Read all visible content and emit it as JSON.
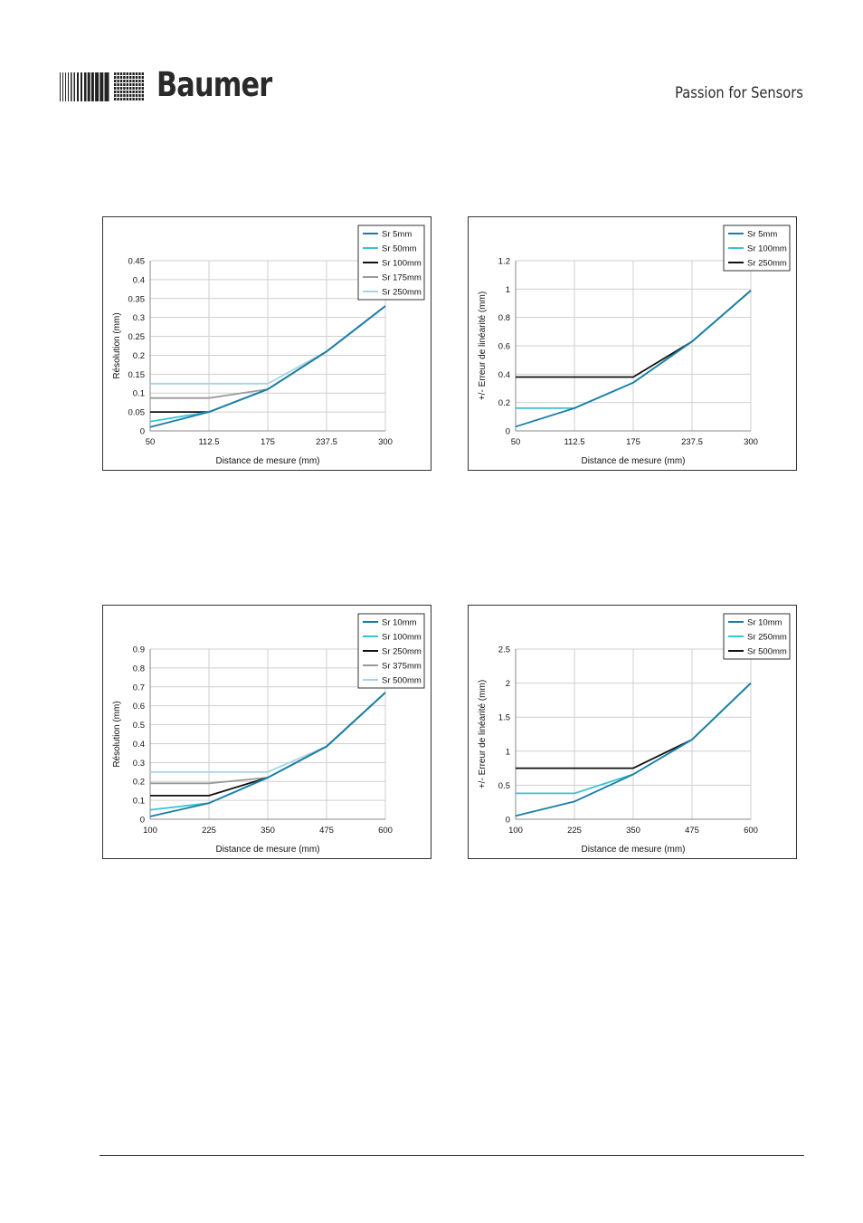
{
  "header": {
    "brand": "Baumer",
    "tagline": "Passion for Sensors"
  },
  "chart_data": [
    {
      "type": "line",
      "xlabel": "Distance de mesure (mm)",
      "ylabel": "Résolution (mm)",
      "x": [
        50,
        112.5,
        175,
        237.5,
        300
      ],
      "x_ticks": [
        "50",
        "112.5",
        "175",
        "237.5",
        "300"
      ],
      "y_ticks": [
        "0",
        "0.05",
        "0.1",
        "0.15",
        "0.2",
        "0.25",
        "0.3",
        "0.35",
        "0.4",
        "0.45"
      ],
      "ylim": [
        0,
        0.45
      ],
      "grid": true,
      "legend": "top-right",
      "series": [
        {
          "name": "Sr 5mm",
          "color": "#1a7fa6",
          "values": [
            0.01,
            0.05,
            0.11,
            0.21,
            0.33
          ]
        },
        {
          "name": "Sr 50mm",
          "color": "#3cc1d4",
          "values": [
            0.025,
            0.05,
            0.11,
            0.21,
            0.33
          ]
        },
        {
          "name": "Sr 100mm",
          "color": "#111111",
          "values": [
            0.05,
            0.05,
            0.11,
            0.21,
            0.33
          ]
        },
        {
          "name": "Sr 175mm",
          "color": "#9a9a9a",
          "values": [
            0.087,
            0.087,
            0.11,
            0.21,
            0.33
          ]
        },
        {
          "name": "Sr 250mm",
          "color": "#a9d3e3",
          "values": [
            0.125,
            0.125,
            0.125,
            0.21,
            0.33
          ]
        }
      ]
    },
    {
      "type": "line",
      "xlabel": "Distance de mesure (mm)",
      "ylabel": "+/- Erreur de linéarité (mm)",
      "x": [
        50,
        112.5,
        175,
        237.5,
        300
      ],
      "x_ticks": [
        "50",
        "112.5",
        "175",
        "237.5",
        "300"
      ],
      "y_ticks": [
        "0",
        "0.2",
        "0.4",
        "0.6",
        "0.8",
        "1",
        "1.2"
      ],
      "ylim": [
        0,
        1.2
      ],
      "grid": true,
      "legend": "top-right",
      "series": [
        {
          "name": "Sr 5mm",
          "color": "#1a7fa6",
          "values": [
            0.03,
            0.16,
            0.34,
            0.63,
            0.99
          ]
        },
        {
          "name": "Sr 100mm",
          "color": "#3cc1d4",
          "values": [
            0.16,
            0.16,
            0.34,
            0.63,
            0.99
          ]
        },
        {
          "name": "Sr 250mm",
          "color": "#111111",
          "values": [
            0.38,
            0.38,
            0.38,
            0.63,
            0.99
          ]
        }
      ]
    },
    {
      "type": "line",
      "xlabel": "Distance de mesure (mm)",
      "ylabel": "Résolution (mm)",
      "x": [
        100,
        225,
        350,
        475,
        600
      ],
      "x_ticks": [
        "100",
        "225",
        "350",
        "475",
        "600"
      ],
      "y_ticks": [
        "0",
        "0.1",
        "0.2",
        "0.3",
        "0.4",
        "0.5",
        "0.6",
        "0.7",
        "0.8",
        "0.9"
      ],
      "ylim": [
        0,
        0.9
      ],
      "grid": true,
      "legend": "top-right",
      "series": [
        {
          "name": "Sr 10mm",
          "color": "#1a7fa6",
          "values": [
            0.015,
            0.085,
            0.22,
            0.385,
            0.67
          ]
        },
        {
          "name": "Sr 100mm",
          "color": "#3cc1d4",
          "values": [
            0.05,
            0.085,
            0.22,
            0.385,
            0.67
          ]
        },
        {
          "name": "Sr 250mm",
          "color": "#111111",
          "values": [
            0.125,
            0.125,
            0.22,
            0.385,
            0.67
          ]
        },
        {
          "name": "Sr 375mm",
          "color": "#9a9a9a",
          "values": [
            0.19,
            0.19,
            0.22,
            0.385,
            0.67
          ]
        },
        {
          "name": "Sr 500mm",
          "color": "#a9d3e3",
          "values": [
            0.25,
            0.25,
            0.25,
            0.385,
            0.67
          ]
        }
      ]
    },
    {
      "type": "line",
      "xlabel": "Distance de mesure (mm)",
      "ylabel": "+/- Erreur de linéarité (mm)",
      "x": [
        100,
        225,
        350,
        475,
        600
      ],
      "x_ticks": [
        "100",
        "225",
        "350",
        "475",
        "600"
      ],
      "y_ticks": [
        "0",
        "0.5",
        "1",
        "1.5",
        "2",
        "2.5"
      ],
      "ylim": [
        0,
        2.5
      ],
      "grid": true,
      "legend": "top-right",
      "series": [
        {
          "name": "Sr 10mm",
          "color": "#1a7fa6",
          "values": [
            0.05,
            0.26,
            0.66,
            1.17,
            2.0
          ]
        },
        {
          "name": "Sr 250mm",
          "color": "#3cc1d4",
          "values": [
            0.38,
            0.38,
            0.66,
            1.17,
            2.0
          ]
        },
        {
          "name": "Sr 500mm",
          "color": "#111111",
          "values": [
            0.75,
            0.75,
            0.75,
            1.17,
            2.0
          ]
        }
      ]
    }
  ]
}
